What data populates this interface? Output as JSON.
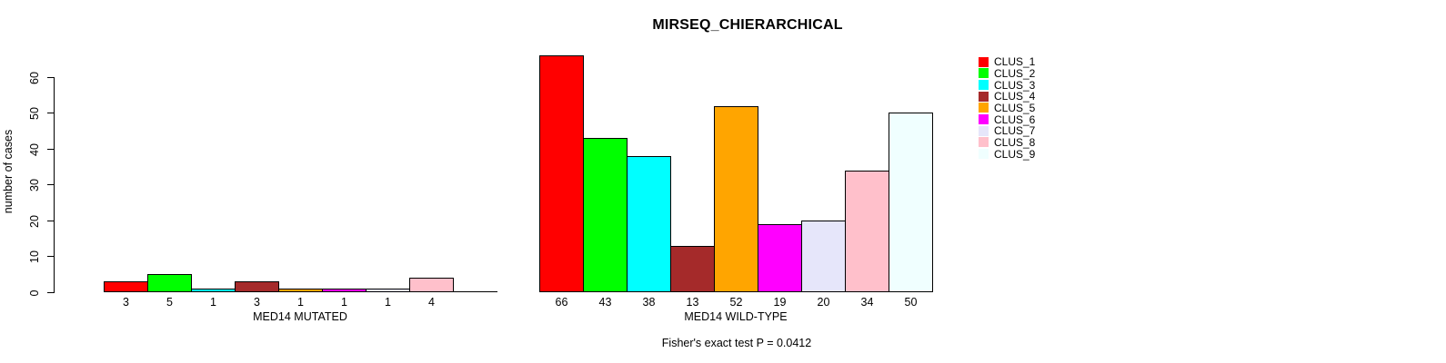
{
  "chart_data": {
    "type": "bar",
    "title": "MIRSEQ_CHIERARCHICAL",
    "ylabel": "number of cases",
    "ylim": [
      0,
      60
    ],
    "yticks": [
      0,
      10,
      20,
      30,
      40,
      50,
      60
    ],
    "grid": false,
    "legend_position": "right",
    "categories": [
      "CLUS_1",
      "CLUS_2",
      "CLUS_3",
      "CLUS_4",
      "CLUS_5",
      "CLUS_6",
      "CLUS_7",
      "CLUS_8",
      "CLUS_9"
    ],
    "colors": [
      "#FF0000",
      "#00FF00",
      "#00FFFF",
      "#A52A2A",
      "#FFA500",
      "#FF00FF",
      "#E6E6FA",
      "#FFC0CB",
      "#F0FFFF"
    ],
    "bar_border_color": "#000000",
    "panels": [
      {
        "xlabel": "MED14 MUTATED",
        "values": [
          3,
          5,
          1,
          3,
          1,
          1,
          1,
          4,
          0
        ],
        "bar_labels": [
          "3",
          "5",
          "1",
          "3",
          "1",
          "1",
          "1",
          "4",
          ""
        ]
      },
      {
        "xlabel": "MED14 WILD-TYPE",
        "values": [
          66,
          43,
          38,
          13,
          52,
          19,
          20,
          34,
          50
        ],
        "bar_labels": [
          "66",
          "43",
          "38",
          "13",
          "52",
          "19",
          "20",
          "34",
          "50"
        ]
      }
    ],
    "annotation": "Fisher's exact test P = 0.0412"
  }
}
